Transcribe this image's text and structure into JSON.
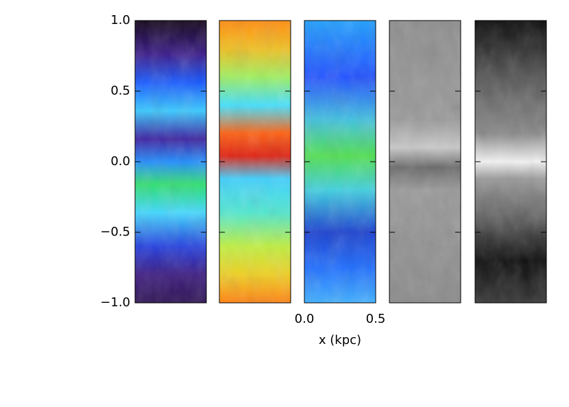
{
  "chart_data": {
    "type": "image",
    "xlabel": "x (kpc)",
    "xlim": [
      0,
      0.5
    ],
    "xticks": [
      {
        "value": 0,
        "label": "0.0"
      },
      {
        "value": 0.5,
        "label": "0.5"
      }
    ],
    "ylim": [
      -1,
      1
    ],
    "yticks": [
      {
        "value": 1,
        "label": "1.0"
      },
      {
        "value": 0.5,
        "label": "0.5"
      },
      {
        "value": 0,
        "label": "0.0"
      },
      {
        "value": -0.5,
        "label": "−0.5"
      },
      {
        "value": -1,
        "label": "−1.0"
      }
    ]
  }
}
